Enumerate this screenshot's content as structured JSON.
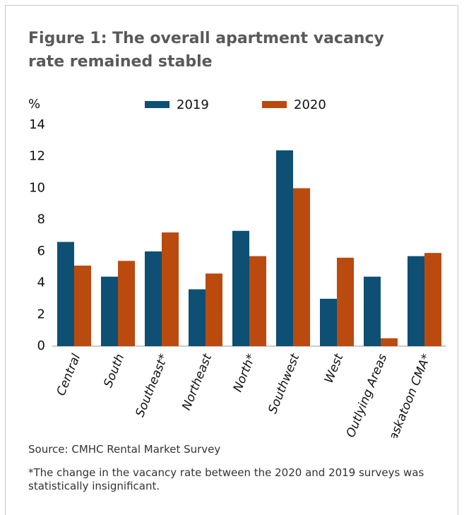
{
  "chart_data": {
    "type": "bar",
    "title": "Figure 1: The overall apartment vacancy rate remained stable",
    "y_label": "%",
    "categories": [
      "Central",
      "South",
      "Southeast*",
      "Northeast",
      "North*",
      "Southwest",
      "West",
      "Outlying Areas",
      "Saskatoon CMA*"
    ],
    "series": [
      {
        "name": "2019",
        "color": "#0d5073",
        "values": [
          6.6,
          4.4,
          6.0,
          3.6,
          7.3,
          12.4,
          3.0,
          4.4,
          5.7
        ]
      },
      {
        "name": "2020",
        "color": "#bb4a0e",
        "values": [
          5.1,
          5.4,
          7.2,
          4.6,
          5.7,
          10.0,
          5.6,
          0.5,
          5.9
        ]
      }
    ],
    "ylim": [
      0,
      14
    ],
    "yticks": [
      0,
      2,
      4,
      6,
      8,
      10,
      12,
      14
    ],
    "grid": false,
    "legend": "top",
    "source": "Source: CMHC Rental Market Survey",
    "note": "*The change in the vacancy rate between the 2020 and 2019 surveys was statistically insignificant."
  }
}
